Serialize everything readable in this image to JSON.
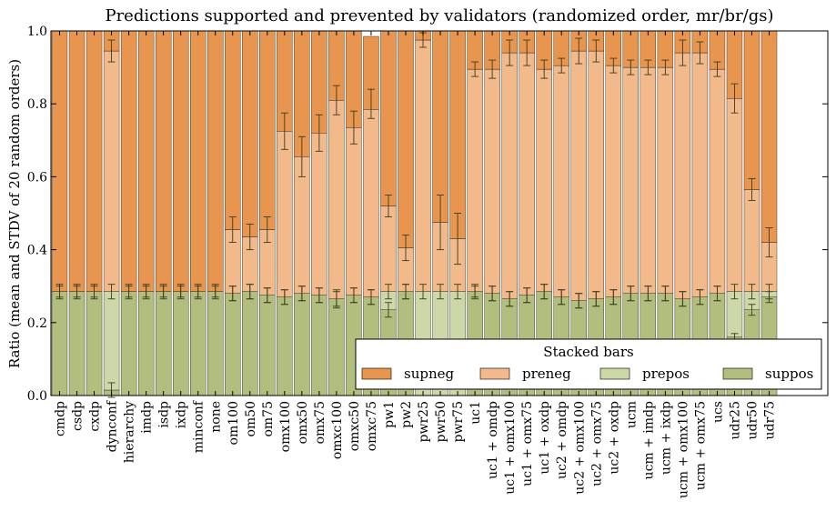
{
  "chart_data": {
    "type": "bar",
    "stacked": true,
    "title": "Predictions supported and prevented by validators (randomized order, mr/br/gs)",
    "xlabel": "",
    "ylabel": "Ratio (mean and STDV of 20 random orders)",
    "ylim": [
      0,
      1.0
    ],
    "yticks": [
      "0.0",
      "0.2",
      "0.4",
      "0.6",
      "0.8",
      "1.0"
    ],
    "grid": false,
    "legend": {
      "title": "Stacked bars",
      "position": "lower-right"
    },
    "colors": {
      "supneg": "#e8964f",
      "preneg": "#f2b98a",
      "prepos": "#cdd8a8",
      "suppos": "#b2be7e"
    },
    "categories": [
      "cmdp",
      "csdp",
      "cxdp",
      "dynconf",
      "hierarchy",
      "imdp",
      "isdp",
      "ixdp",
      "minconf",
      "none",
      "om100",
      "om50",
      "om75",
      "omx100",
      "omx50",
      "omx75",
      "omxc100",
      "omxc50",
      "omxc75",
      "pw1",
      "pw2",
      "pwr25",
      "pwr50",
      "pwr75",
      "uc1",
      "uc1 + omdp",
      "uc1 + omx100",
      "uc1 + omx75",
      "uc1 + oxdp",
      "uc2 + omdp",
      "uc2 + omx100",
      "uc2 + omx75",
      "uc2 + oxdp",
      "ucm",
      "ucm + imdp",
      "ucm + ixdp",
      "ucm + omx100",
      "ucm + omx75",
      "ucs",
      "udr25",
      "udr50",
      "udr75"
    ],
    "series": [
      {
        "name": "suppos",
        "values": [
          0.285,
          0.285,
          0.285,
          0.015,
          0.285,
          0.285,
          0.285,
          0.285,
          0.285,
          0.285,
          0.28,
          0.285,
          0.275,
          0.27,
          0.28,
          0.275,
          0.265,
          0.275,
          0.27,
          0.235,
          0.285,
          0.0,
          0.0,
          0.0,
          0.285,
          0.28,
          0.265,
          0.275,
          0.285,
          0.27,
          0.26,
          0.265,
          0.27,
          0.28,
          0.28,
          0.28,
          0.265,
          0.27,
          0.28,
          0.16,
          0.235,
          0.27
        ]
      },
      {
        "name": "prepos",
        "values": [
          0.0,
          0.0,
          0.0,
          0.27,
          0.0,
          0.0,
          0.0,
          0.0,
          0.0,
          0.0,
          0.0,
          0.0,
          0.0,
          0.0,
          0.0,
          0.0,
          0.0,
          0.0,
          0.0,
          0.05,
          0.0,
          0.285,
          0.285,
          0.285,
          0.0,
          0.0,
          0.0,
          0.0,
          0.0,
          0.0,
          0.0,
          0.0,
          0.0,
          0.0,
          0.0,
          0.0,
          0.0,
          0.0,
          0.0,
          0.125,
          0.05,
          0.015
        ]
      },
      {
        "name": "preneg",
        "values": [
          0.0,
          0.0,
          0.0,
          0.66,
          0.0,
          0.0,
          0.0,
          0.0,
          0.0,
          0.0,
          0.175,
          0.15,
          0.18,
          0.455,
          0.375,
          0.445,
          0.545,
          0.46,
          0.515,
          0.235,
          0.12,
          0.69,
          0.19,
          0.145,
          0.61,
          0.615,
          0.675,
          0.665,
          0.61,
          0.635,
          0.685,
          0.68,
          0.635,
          0.62,
          0.62,
          0.62,
          0.675,
          0.67,
          0.615,
          0.53,
          0.28,
          0.135
        ]
      },
      {
        "name": "supneg",
        "values": [
          0.715,
          0.715,
          0.715,
          0.055,
          0.715,
          0.715,
          0.715,
          0.715,
          0.715,
          0.715,
          0.545,
          0.565,
          0.545,
          0.275,
          0.345,
          0.28,
          0.19,
          0.265,
          0.2,
          0.48,
          0.595,
          0.025,
          0.525,
          0.57,
          0.105,
          0.105,
          0.06,
          0.06,
          0.105,
          0.095,
          0.055,
          0.055,
          0.095,
          0.1,
          0.1,
          0.1,
          0.06,
          0.06,
          0.105,
          0.185,
          0.435,
          0.58
        ]
      }
    ],
    "error_bars": {
      "boundary1": {
        "mean": [
          0.285,
          0.285,
          0.285,
          0.015,
          0.285,
          0.285,
          0.285,
          0.285,
          0.285,
          0.285,
          0.28,
          0.285,
          0.275,
          0.27,
          0.28,
          0.275,
          0.265,
          0.275,
          0.27,
          0.235,
          0.285,
          0.0,
          0.0,
          0.0,
          0.285,
          0.28,
          0.265,
          0.275,
          0.285,
          0.27,
          0.26,
          0.265,
          0.27,
          0.28,
          0.28,
          0.28,
          0.265,
          0.27,
          0.28,
          0.16,
          0.235,
          0.27
        ],
        "std": [
          0.015,
          0.015,
          0.015,
          0.02,
          0.015,
          0.015,
          0.015,
          0.015,
          0.015,
          0.015,
          0.02,
          0.02,
          0.02,
          0.02,
          0.02,
          0.02,
          0.025,
          0.02,
          0.02,
          0.02,
          0.02,
          0.0,
          0.0,
          0.0,
          0.015,
          0.02,
          0.02,
          0.02,
          0.02,
          0.02,
          0.02,
          0.02,
          0.02,
          0.02,
          0.02,
          0.02,
          0.02,
          0.02,
          0.02,
          0.01,
          0.015,
          0.015
        ]
      },
      "boundary2": {
        "mean": [
          0.285,
          0.285,
          0.285,
          0.285,
          0.285,
          0.285,
          0.285,
          0.285,
          0.285,
          0.285,
          0.28,
          0.285,
          0.275,
          0.27,
          0.28,
          0.275,
          0.265,
          0.275,
          0.27,
          0.285,
          0.285,
          0.285,
          0.285,
          0.285,
          0.285,
          0.28,
          0.265,
          0.275,
          0.285,
          0.27,
          0.26,
          0.265,
          0.27,
          0.28,
          0.28,
          0.28,
          0.265,
          0.27,
          0.28,
          0.285,
          0.285,
          0.285
        ],
        "std": [
          0.02,
          0.02,
          0.02,
          0.02,
          0.02,
          0.02,
          0.02,
          0.02,
          0.02,
          0.02,
          0.02,
          0.02,
          0.02,
          0.02,
          0.02,
          0.02,
          0.02,
          0.02,
          0.02,
          0.02,
          0.02,
          0.02,
          0.02,
          0.02,
          0.02,
          0.02,
          0.02,
          0.02,
          0.02,
          0.02,
          0.02,
          0.02,
          0.02,
          0.02,
          0.02,
          0.02,
          0.02,
          0.02,
          0.02,
          0.02,
          0.02,
          0.02
        ]
      },
      "boundary3": {
        "mean": [
          1.0,
          1.0,
          1.0,
          0.945,
          1.0,
          1.0,
          1.0,
          1.0,
          1.0,
          1.0,
          0.455,
          0.435,
          0.455,
          0.725,
          0.655,
          0.72,
          0.81,
          0.735,
          0.8,
          0.52,
          0.405,
          0.975,
          0.475,
          0.43,
          0.895,
          0.895,
          0.94,
          0.94,
          0.895,
          0.905,
          0.945,
          0.945,
          0.905,
          0.9,
          0.9,
          0.9,
          0.94,
          0.94,
          0.895,
          0.815,
          0.565,
          0.42
        ],
        "std": [
          0.0,
          0.0,
          0.0,
          0.03,
          0.0,
          0.0,
          0.0,
          0.0,
          0.0,
          0.0,
          0.035,
          0.035,
          0.035,
          0.05,
          0.055,
          0.05,
          0.04,
          0.045,
          0.04,
          0.03,
          0.035,
          0.02,
          0.075,
          0.07,
          0.02,
          0.025,
          0.035,
          0.035,
          0.025,
          0.02,
          0.035,
          0.03,
          0.02,
          0.02,
          0.02,
          0.02,
          0.035,
          0.03,
          0.02,
          0.04,
          0.03,
          0.04
        ]
      }
    }
  }
}
